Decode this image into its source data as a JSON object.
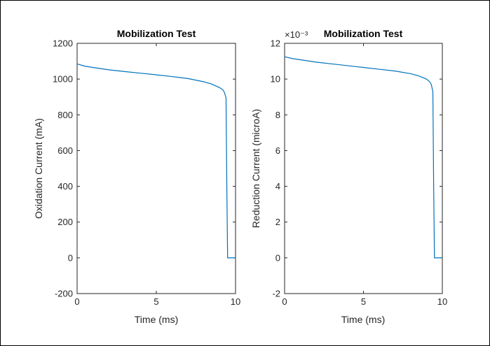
{
  "chart_data": [
    {
      "type": "line",
      "title": "Mobilization Test",
      "xlabel": "Time (ms)",
      "ylabel": "Oxidation Current (mA)",
      "xlim": [
        0,
        10
      ],
      "ylim": [
        -200,
        1200
      ],
      "xticks": [
        0,
        5,
        10
      ],
      "yticks": [
        -200,
        0,
        200,
        400,
        600,
        800,
        1000,
        1200
      ],
      "xtick_labels": [
        "0",
        "5",
        "10"
      ],
      "ytick_labels": [
        "-200",
        "0",
        "200",
        "400",
        "600",
        "800",
        "1000",
        "1200"
      ],
      "exponent_label": "",
      "line_color": "#0072bd",
      "series": [
        {
          "x": [
            0,
            0.5,
            1,
            2,
            3,
            4,
            5,
            6,
            7,
            8,
            8.5,
            9,
            9.2,
            9.3,
            9.4,
            9.45,
            9.5,
            9.55,
            10
          ],
          "y": [
            1085,
            1072,
            1065,
            1052,
            1042,
            1033,
            1024,
            1014,
            1003,
            985,
            972,
            952,
            940,
            925,
            895,
            400,
            0,
            0,
            0
          ]
        }
      ]
    },
    {
      "type": "line",
      "title": "Mobilization Test",
      "xlabel": "Time (ms)",
      "ylabel": "Reduction Current (microA)",
      "xlim": [
        0,
        10
      ],
      "ylim": [
        -2,
        12
      ],
      "xticks": [
        0,
        5,
        10
      ],
      "yticks": [
        -2,
        0,
        2,
        4,
        6,
        8,
        10,
        12
      ],
      "xtick_labels": [
        "0",
        "5",
        "10"
      ],
      "ytick_labels": [
        "-2",
        "0",
        "2",
        "4",
        "6",
        "8",
        "10",
        "12"
      ],
      "exponent_label": "×10⁻³",
      "line_color": "#0072bd",
      "series": [
        {
          "x": [
            0,
            0.5,
            1,
            2,
            3,
            4,
            5,
            6,
            7,
            8,
            8.5,
            9,
            9.2,
            9.3,
            9.4,
            9.45,
            9.5,
            9.55,
            10
          ],
          "y": [
            11.25,
            11.15,
            11.08,
            10.95,
            10.85,
            10.75,
            10.65,
            10.55,
            10.45,
            10.3,
            10.18,
            10.0,
            9.85,
            9.7,
            9.3,
            4.0,
            0,
            0,
            0
          ]
        }
      ]
    }
  ]
}
